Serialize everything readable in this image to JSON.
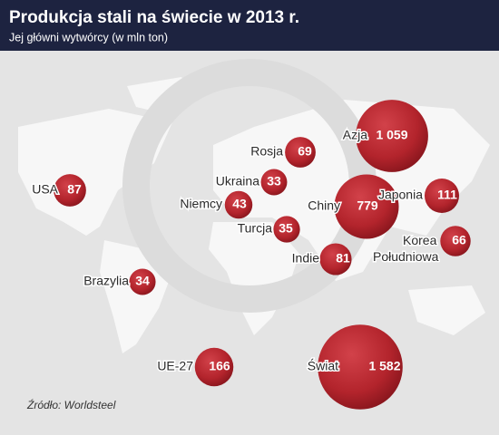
{
  "chart_data": {
    "type": "bubble-map",
    "title": "Produkcja stali na świecie w 2013 r.",
    "subtitle": "Jej główni wytwórcy (w mln ton)",
    "source": "Źródło: Worldsteel",
    "color": "#b3242c",
    "points": [
      {
        "name": "USA",
        "value": 87,
        "value_label": "87"
      },
      {
        "name": "Ukraina",
        "value": 33,
        "value_label": "33"
      },
      {
        "name": "Rosja",
        "value": 69,
        "value_label": "69"
      },
      {
        "name": "Azja",
        "value": 1059,
        "value_label": "1 059"
      },
      {
        "name": "Niemcy",
        "value": 43,
        "value_label": "43"
      },
      {
        "name": "Chiny",
        "value": 779,
        "value_label": "779"
      },
      {
        "name": "Japonia",
        "value": 111,
        "value_label": "111"
      },
      {
        "name": "Turcja",
        "value": 35,
        "value_label": "35"
      },
      {
        "name": "Korea Południowa",
        "value": 66,
        "value_label": "66"
      },
      {
        "name": "Indie",
        "value": 81,
        "value_label": "81"
      },
      {
        "name": "Brazylia",
        "value": 34,
        "value_label": "34"
      },
      {
        "name": "UE-27",
        "value": 166,
        "value_label": "166"
      },
      {
        "name": "Świat",
        "value": 1582,
        "value_label": "1 582"
      }
    ]
  }
}
